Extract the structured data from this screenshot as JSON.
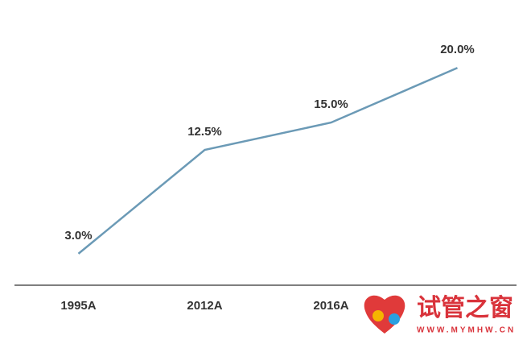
{
  "chart_data": {
    "type": "line",
    "categories": [
      "1995A",
      "2012A",
      "2016A",
      null
    ],
    "series": [
      {
        "color": "#6b9ab6",
        "values": [
          3.0,
          12.5,
          15.0,
          20.0
        ],
        "value_labels": [
          "3.0%",
          "12.5%",
          "15.0%",
          "20.0%"
        ]
      }
    ],
    "ylim": [
      0,
      24
    ]
  },
  "watermark": {
    "title": "试管之窗",
    "url": "WWW.MYMHW.CN"
  }
}
